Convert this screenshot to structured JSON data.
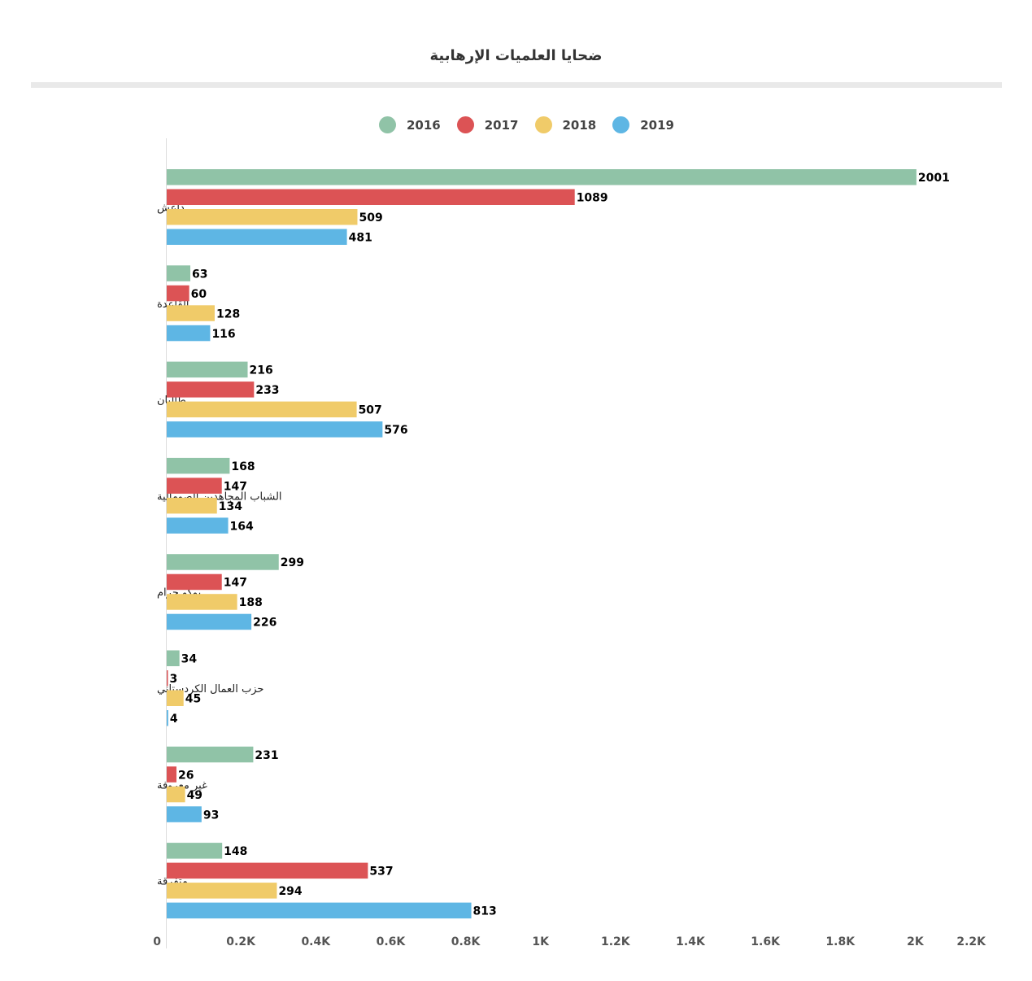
{
  "chart_data": {
    "type": "bar",
    "orientation": "horizontal",
    "title": "ضحايا العلميات الإرهابية",
    "categories": [
      "داعش",
      "القاعدة",
      "طالبان",
      "الشباب المجاهدين الصومالية",
      "بوكو حرام",
      "حزب العمال الكردستاني",
      "غير معروفة",
      "متفرقة"
    ],
    "series": [
      {
        "name": "2016",
        "color": "#90c3a7",
        "values": [
          2001,
          63,
          216,
          168,
          299,
          34,
          231,
          148
        ]
      },
      {
        "name": "2017",
        "color": "#dc5355",
        "values": [
          1089,
          60,
          233,
          147,
          147,
          3,
          26,
          537
        ]
      },
      {
        "name": "2018",
        "color": "#f0cb69",
        "values": [
          509,
          128,
          507,
          134,
          188,
          45,
          49,
          294
        ]
      },
      {
        "name": "2019",
        "color": "#5eb6e4",
        "values": [
          481,
          116,
          576,
          164,
          226,
          4,
          93,
          813
        ]
      }
    ],
    "xlim": [
      0,
      2200
    ],
    "x_ticks": [
      {
        "value": 0,
        "label": "0"
      },
      {
        "value": 200,
        "label": "0.2K"
      },
      {
        "value": 400,
        "label": "0.4K"
      },
      {
        "value": 600,
        "label": "0.6K"
      },
      {
        "value": 800,
        "label": "0.8K"
      },
      {
        "value": 1000,
        "label": "1K"
      },
      {
        "value": 1200,
        "label": "1.2K"
      },
      {
        "value": 1400,
        "label": "1.4K"
      },
      {
        "value": 1600,
        "label": "1.6K"
      },
      {
        "value": 1800,
        "label": "1.8K"
      },
      {
        "value": 2000,
        "label": "2K"
      },
      {
        "value": 2200,
        "label": "2.2K"
      }
    ],
    "legend_position": "top",
    "grid": false
  }
}
